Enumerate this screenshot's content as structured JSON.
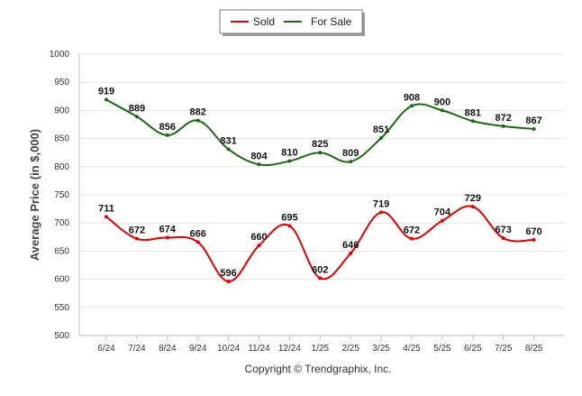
{
  "chart_data": {
    "type": "line",
    "categories": [
      "6/24",
      "7/24",
      "8/24",
      "9/24",
      "10/24",
      "11/24",
      "12/24",
      "1/25",
      "2/25",
      "3/25",
      "4/25",
      "5/25",
      "6/25",
      "7/25",
      "8/25"
    ],
    "series": [
      {
        "name": "Sold",
        "color": "#e00000",
        "values": [
          711,
          672,
          674,
          666,
          596,
          660,
          695,
          602,
          646,
          719,
          672,
          704,
          729,
          673,
          670
        ],
        "labels": [
          "711",
          "672",
          "674",
          "666",
          "596",
          "660",
          "695",
          "602",
          "646",
          "719",
          "672",
          "704",
          "729",
          "673",
          "670"
        ]
      },
      {
        "name": "For Sale",
        "color": "#1a6b10",
        "values": [
          919,
          889,
          856,
          882,
          831,
          804,
          810,
          825,
          809,
          851,
          908,
          900,
          881,
          872,
          867
        ],
        "labels": [
          "919",
          "889",
          "856",
          "882",
          "831",
          "804",
          "810",
          "825",
          "809",
          "851",
          "908",
          "900",
          "881",
          "872",
          "867"
        ]
      }
    ],
    "ylabel": "Average Price (in $,000)",
    "xlabel": "",
    "ylim": [
      500,
      1000
    ],
    "yticks": [
      "500",
      "550",
      "600",
      "650",
      "700",
      "750",
      "800",
      "850",
      "900",
      "950",
      "1000"
    ],
    "grid": true,
    "legend_position": "top-center",
    "footer": "Copyright © Trendgraphix, Inc.",
    "colors": {
      "grid": "#e3e3e3",
      "axis": "#bdbdbd"
    }
  }
}
